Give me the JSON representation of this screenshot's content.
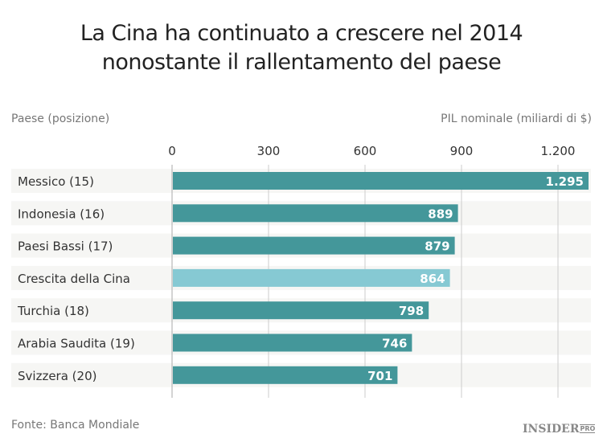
{
  "chart_data": {
    "type": "bar",
    "orientation": "horizontal",
    "title": "La Cina ha continuato a crescere nel 2014",
    "subtitle": "nonostante il rallentamento del paese",
    "ylabel": "Paese (posizione)",
    "xlabel": "PIL nominale (miliardi di $)",
    "xlim": [
      0,
      1300
    ],
    "ticks": [
      0,
      300,
      600,
      900,
      1200
    ],
    "tick_labels": [
      "0",
      "300",
      "600",
      "900",
      "1.200"
    ],
    "grid": true,
    "categories": [
      "Messico (15)",
      "Indonesia (16)",
      "Paesi Bassi (17)",
      "Crescita della Cina",
      "Turchia (18)",
      "Arabia Saudita (19)",
      "Svizzera (20)"
    ],
    "values": [
      1295,
      889,
      879,
      864,
      798,
      746,
      701
    ],
    "value_labels": [
      "1.295",
      "889",
      "879",
      "864",
      "798",
      "746",
      "701"
    ],
    "highlight_index": 3,
    "colors": {
      "bar": "#44979a",
      "highlight": "#86c9d3",
      "row_bg": "#f6f6f4",
      "grid": "#cccccc"
    }
  },
  "source": "Fonte: Banca Mondiale",
  "logo": {
    "main": "INSIDER",
    "sub": "PRO"
  }
}
